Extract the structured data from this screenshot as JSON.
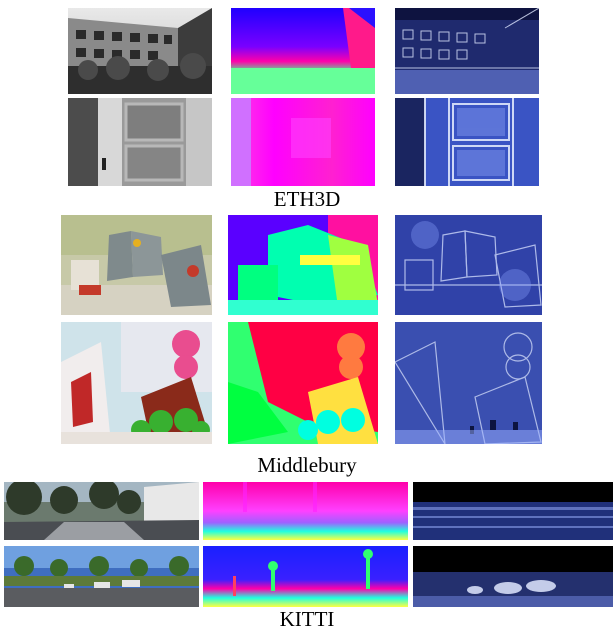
{
  "figure": {
    "sections": [
      {
        "id": "eth3d",
        "caption": "ETH3D"
      },
      {
        "id": "middlebury",
        "caption": "Middlebury"
      },
      {
        "id": "kitti",
        "caption": "KITTI"
      }
    ],
    "columns": [
      "input-image",
      "disparity-map",
      "error-map"
    ],
    "colors": {
      "disparity_far": "#1a1aff",
      "disparity_mid": "#ff00ff",
      "disparity_near": "#00ff80",
      "disparity_nearest": "#ffff00",
      "error_low": "#1f2f7a",
      "error_high": "#e8f0ff"
    }
  }
}
